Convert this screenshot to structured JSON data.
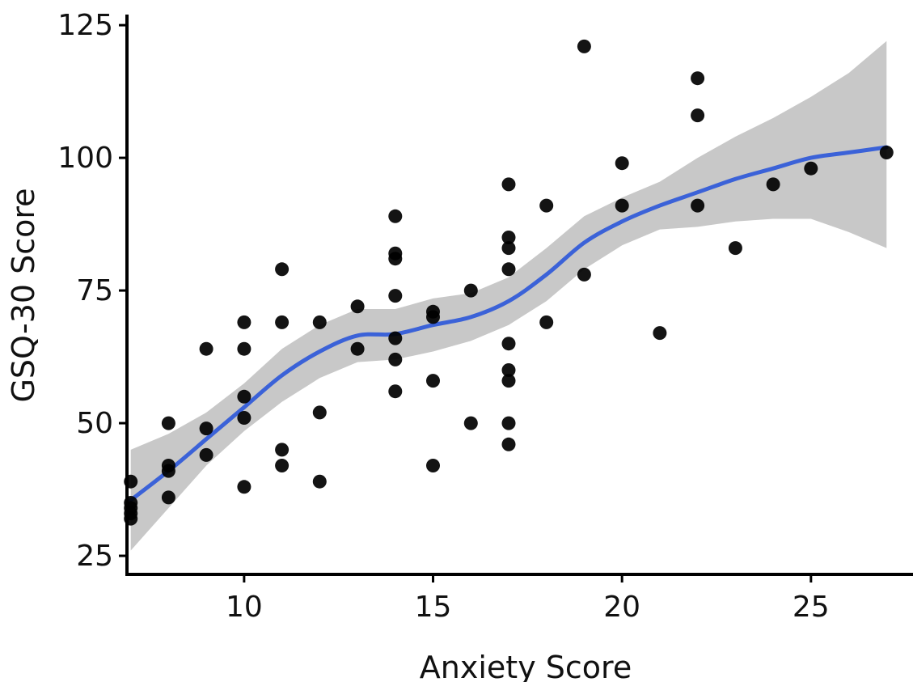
{
  "chart_data": {
    "type": "scatter",
    "title": "",
    "xlabel": "Anxiety Score",
    "ylabel": "GSQ-30 Score",
    "xlim": [
      6.9,
      27.7
    ],
    "ylim": [
      21.5,
      127
    ],
    "xticks": [
      10,
      15,
      20,
      25
    ],
    "yticks": [
      25,
      50,
      75,
      100,
      125
    ],
    "grid": false,
    "legend": "none",
    "colors": {
      "points": "#000000",
      "smooth_line": "#3b62d8",
      "confidence_band": "#c8c8c8",
      "axis": "#000000"
    },
    "points": [
      {
        "x": 7,
        "y": 39
      },
      {
        "x": 7,
        "y": 35
      },
      {
        "x": 7,
        "y": 34
      },
      {
        "x": 7,
        "y": 33
      },
      {
        "x": 7,
        "y": 32
      },
      {
        "x": 8,
        "y": 50
      },
      {
        "x": 8,
        "y": 42
      },
      {
        "x": 8,
        "y": 41
      },
      {
        "x": 8,
        "y": 36
      },
      {
        "x": 9,
        "y": 64
      },
      {
        "x": 9,
        "y": 49
      },
      {
        "x": 9,
        "y": 44
      },
      {
        "x": 10,
        "y": 69
      },
      {
        "x": 10,
        "y": 64
      },
      {
        "x": 10,
        "y": 55
      },
      {
        "x": 10,
        "y": 51
      },
      {
        "x": 10,
        "y": 38
      },
      {
        "x": 11,
        "y": 79
      },
      {
        "x": 11,
        "y": 69
      },
      {
        "x": 11,
        "y": 45
      },
      {
        "x": 11,
        "y": 42
      },
      {
        "x": 12,
        "y": 69
      },
      {
        "x": 12,
        "y": 52
      },
      {
        "x": 12,
        "y": 39
      },
      {
        "x": 13,
        "y": 72
      },
      {
        "x": 13,
        "y": 64
      },
      {
        "x": 14,
        "y": 89
      },
      {
        "x": 14,
        "y": 82
      },
      {
        "x": 14,
        "y": 81
      },
      {
        "x": 14,
        "y": 74
      },
      {
        "x": 14,
        "y": 66
      },
      {
        "x": 14,
        "y": 62
      },
      {
        "x": 14,
        "y": 56
      },
      {
        "x": 15,
        "y": 71
      },
      {
        "x": 15,
        "y": 70
      },
      {
        "x": 15,
        "y": 58
      },
      {
        "x": 15,
        "y": 42
      },
      {
        "x": 16,
        "y": 75
      },
      {
        "x": 16,
        "y": 50
      },
      {
        "x": 17,
        "y": 95
      },
      {
        "x": 17,
        "y": 85
      },
      {
        "x": 17,
        "y": 83
      },
      {
        "x": 17,
        "y": 79
      },
      {
        "x": 17,
        "y": 65
      },
      {
        "x": 17,
        "y": 60
      },
      {
        "x": 17,
        "y": 58
      },
      {
        "x": 17,
        "y": 50
      },
      {
        "x": 17,
        "y": 46
      },
      {
        "x": 18,
        "y": 91
      },
      {
        "x": 18,
        "y": 69
      },
      {
        "x": 19,
        "y": 121
      },
      {
        "x": 19,
        "y": 78
      },
      {
        "x": 20,
        "y": 99
      },
      {
        "x": 20,
        "y": 91
      },
      {
        "x": 21,
        "y": 67
      },
      {
        "x": 22,
        "y": 115
      },
      {
        "x": 22,
        "y": 108
      },
      {
        "x": 22,
        "y": 91
      },
      {
        "x": 23,
        "y": 83
      },
      {
        "x": 24,
        "y": 95
      },
      {
        "x": 25,
        "y": 98
      },
      {
        "x": 27,
        "y": 101
      }
    ],
    "smooth": {
      "x": [
        7,
        8,
        9,
        10,
        11,
        12,
        13,
        14,
        15,
        16,
        17,
        18,
        19,
        20,
        21,
        22,
        23,
        24,
        25,
        26,
        27
      ],
      "y": [
        35.5,
        41,
        47,
        53,
        59,
        63.5,
        66.5,
        66.8,
        68.5,
        70,
        73,
        78,
        84,
        88,
        91,
        93.5,
        96,
        98,
        100,
        101,
        102
      ],
      "lower": [
        26,
        34,
        42,
        48.5,
        54,
        58.5,
        61.5,
        62,
        63.5,
        65.5,
        68.5,
        73,
        79,
        83.5,
        86.5,
        87,
        88,
        88.5,
        88.5,
        86,
        83
      ],
      "upper": [
        45,
        48,
        52,
        57.5,
        64,
        68.5,
        71.5,
        71.5,
        73.5,
        74.5,
        77.5,
        83,
        89,
        92.5,
        95.5,
        100,
        104,
        107.5,
        111.5,
        116,
        122
      ]
    }
  }
}
